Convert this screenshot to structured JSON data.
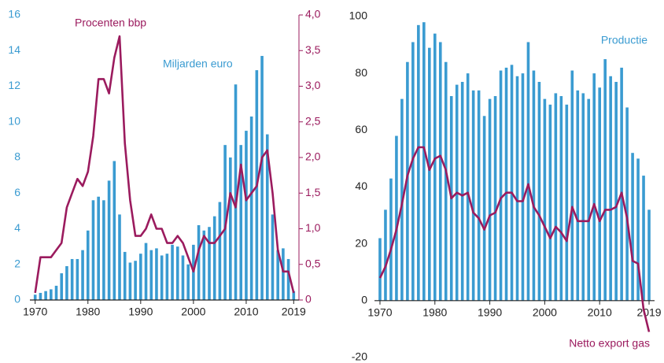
{
  "chart_data": [
    {
      "type": "bar_line",
      "x": [
        1970,
        1971,
        1972,
        1973,
        1974,
        1975,
        1976,
        1977,
        1978,
        1979,
        1980,
        1981,
        1982,
        1983,
        1984,
        1985,
        1986,
        1987,
        1988,
        1989,
        1990,
        1991,
        1992,
        1993,
        1994,
        1995,
        1996,
        1997,
        1998,
        1999,
        2000,
        2001,
        2002,
        2003,
        2004,
        2005,
        2006,
        2007,
        2008,
        2009,
        2010,
        2011,
        2012,
        2013,
        2014,
        2015,
        2016,
        2017,
        2018,
        2019
      ],
      "xlim": [
        1969,
        2020
      ],
      "xticks": [
        1970,
        1980,
        1990,
        2000,
        2010,
        2019
      ],
      "ylim": [
        0,
        16
      ],
      "yticks": [
        0,
        2,
        4,
        6,
        8,
        10,
        12,
        14,
        16
      ],
      "y2lim": [
        0,
        4
      ],
      "y2ticks": [
        0,
        {
          "value": 0.5,
          "label": "0,5"
        },
        {
          "value": 1,
          "label": "1,0"
        },
        {
          "value": 1.5,
          "label": "1,5"
        },
        {
          "value": 2,
          "label": "2,0"
        },
        {
          "value": 2.5,
          "label": "2,5"
        },
        {
          "value": 3,
          "label": "3,0"
        },
        {
          "value": 3.5,
          "label": "3,5"
        },
        {
          "value": 4,
          "label": "4,0"
        }
      ],
      "series": [
        {
          "name": "Miljarden euro",
          "kind": "bar",
          "color": "#3a9bd1",
          "values": [
            0.3,
            0.4,
            0.5,
            0.6,
            0.8,
            1.5,
            1.9,
            2.3,
            2.3,
            2.8,
            3.9,
            5.6,
            5.8,
            5.6,
            6.7,
            7.8,
            4.8,
            2.7,
            2.1,
            2.2,
            2.6,
            3.2,
            2.8,
            2.9,
            2.5,
            2.6,
            3.1,
            3.0,
            2.5,
            2.0,
            3.1,
            4.2,
            3.9,
            4.1,
            4.7,
            5.5,
            8.7,
            8.0,
            12.1,
            8.7,
            9.5,
            10.3,
            12.9,
            13.7,
            9.3,
            4.8,
            2.8,
            2.9,
            2.3,
            0.5
          ]
        },
        {
          "name": "Procenten bbp",
          "kind": "line",
          "axis": "y2",
          "color": "#9b1b5e",
          "values": [
            0.1,
            0.6,
            0.6,
            0.6,
            0.7,
            0.8,
            1.3,
            1.5,
            1.7,
            1.6,
            1.8,
            2.3,
            3.1,
            3.1,
            2.9,
            3.4,
            3.7,
            2.2,
            1.4,
            0.9,
            0.9,
            1.0,
            1.2,
            1.0,
            1.0,
            0.8,
            0.8,
            0.9,
            0.8,
            0.6,
            0.4,
            0.7,
            0.9,
            0.8,
            0.8,
            0.9,
            1.0,
            1.5,
            1.3,
            1.9,
            1.4,
            1.5,
            1.6,
            2.0,
            2.1,
            1.5,
            0.7,
            0.4,
            0.4,
            0.1
          ]
        }
      ]
    },
    {
      "type": "bar_line",
      "x": [
        1970,
        1971,
        1972,
        1973,
        1974,
        1975,
        1976,
        1977,
        1978,
        1979,
        1980,
        1981,
        1982,
        1983,
        1984,
        1985,
        1986,
        1987,
        1988,
        1989,
        1990,
        1991,
        1992,
        1993,
        1994,
        1995,
        1996,
        1997,
        1998,
        1999,
        2000,
        2001,
        2002,
        2003,
        2004,
        2005,
        2006,
        2007,
        2008,
        2009,
        2010,
        2011,
        2012,
        2013,
        2014,
        2015,
        2016,
        2017,
        2018,
        2019
      ],
      "xlim": [
        1969,
        2020
      ],
      "xticks": [
        1970,
        1980,
        1990,
        2000,
        2010,
        2019
      ],
      "ylim": [
        -20,
        100
      ],
      "yticks": [
        -20,
        0,
        20,
        40,
        60,
        80,
        100
      ],
      "series": [
        {
          "name": "Productie",
          "kind": "bar",
          "color": "#3a9bd1",
          "values": [
            22,
            32,
            43,
            58,
            71,
            84,
            91,
            97,
            98,
            89,
            94,
            91,
            84,
            72,
            76,
            77,
            80,
            74,
            74,
            65,
            71,
            72,
            81,
            82,
            83,
            79,
            80,
            91,
            81,
            77,
            71,
            69,
            73,
            72,
            69,
            81,
            74,
            73,
            71,
            80,
            75,
            85,
            79,
            77,
            82,
            68,
            52,
            50,
            44,
            32
          ]
        },
        {
          "name": "Netto export gas",
          "kind": "line",
          "color": "#9b1b5e",
          "values": [
            8,
            12,
            18,
            25,
            34,
            44,
            50,
            54,
            54,
            46,
            50,
            51,
            46,
            36,
            38,
            37,
            38,
            31,
            29,
            25,
            30,
            31,
            36,
            38,
            38,
            35,
            35,
            41,
            33,
            30,
            26,
            22,
            26,
            24,
            21,
            33,
            28,
            28,
            28,
            34,
            28,
            32,
            32,
            33,
            38,
            29,
            14,
            13,
            -3,
            -11
          ]
        }
      ]
    }
  ]
}
